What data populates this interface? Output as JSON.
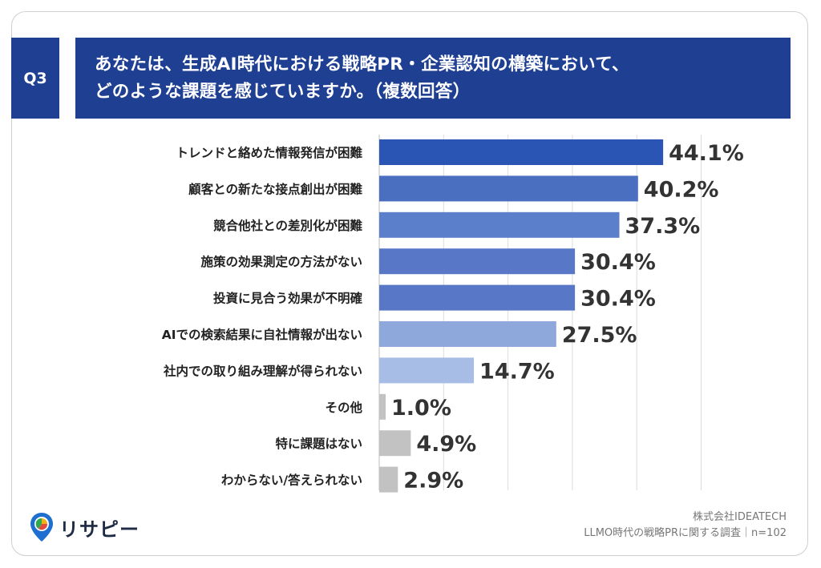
{
  "header": {
    "badge": "Q3",
    "title_line1": "あなたは、生成AI時代における戦略PR・企業認知の構築において、",
    "title_line2": "どのような課題を感じていますか。（複数回答）"
  },
  "colors": {
    "header_bg": "#1f3f93",
    "bar_dark": "#2a55b5",
    "bar_mid": "#5478c8",
    "bar_light": "#98b0df",
    "bar_lighter": "#aabde4",
    "bar_gray": "#c2c2c2"
  },
  "chart_data": {
    "type": "bar",
    "orientation": "horizontal",
    "categories": [
      "トレンドと絡めた情報発信が困難",
      "顧客との新たな接点創出が困難",
      "競合他社との差別化が困難",
      "施策の効果測定の方法がない",
      "投資に見合う効果が不明確",
      "AIでの検索結果に自社情報が出ない",
      "社内での取り組み理解が得られない",
      "その他",
      "特に課題はない",
      "わからない/答えられない"
    ],
    "values": [
      44.1,
      40.2,
      37.3,
      30.4,
      30.4,
      27.5,
      14.7,
      1.0,
      4.9,
      2.9
    ],
    "value_labels": [
      "44.1%",
      "40.2%",
      "37.3%",
      "30.4%",
      "30.4%",
      "27.5%",
      "14.7%",
      "1.0%",
      "4.9%",
      "2.9%"
    ],
    "bar_colors": [
      "#2a55b5",
      "#4a6fc1",
      "#5b7fcb",
      "#5878c7",
      "#5878c7",
      "#8ea8dc",
      "#a8bde6",
      "#c2c2c2",
      "#c2c2c2",
      "#c2c2c2"
    ],
    "xlim": [
      0,
      50
    ],
    "grid": true
  },
  "logo": {
    "text": "リサピー"
  },
  "footer": {
    "company": "株式会社IDEATECH",
    "survey": "LLMO時代の戦略PRに関する調査｜n=102"
  }
}
